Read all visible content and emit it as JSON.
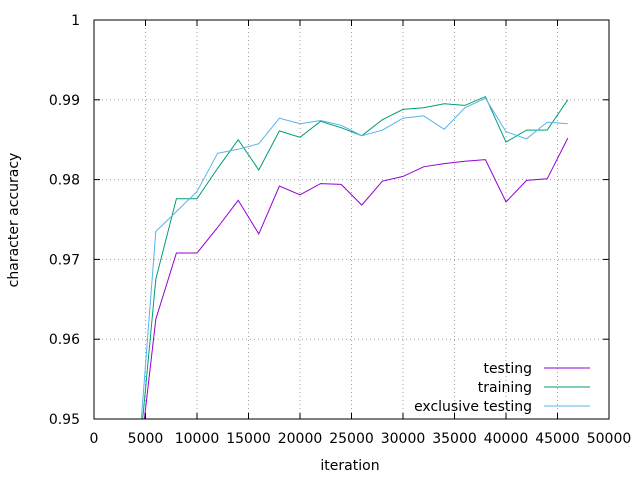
{
  "chart_data": {
    "type": "line",
    "xlabel": "iteration",
    "ylabel": "character accuracy",
    "xlim": [
      0,
      50000
    ],
    "ylim": [
      0.95,
      1
    ],
    "xticks": [
      0,
      5000,
      10000,
      15000,
      20000,
      25000,
      30000,
      35000,
      40000,
      45000,
      50000
    ],
    "yticks": [
      0.95,
      0.96,
      0.97,
      0.98,
      0.99,
      1
    ],
    "xtick_labels": [
      "0",
      "5000",
      "10000",
      "15000",
      "20000",
      "25000",
      "30000",
      "35000",
      "40000",
      "45000",
      "50000"
    ],
    "ytick_labels": [
      "0.95",
      "0.96",
      "0.97",
      "0.98",
      "0.99",
      "1"
    ],
    "grid": true,
    "legend_position": "bottom-right",
    "x": [
      4000,
      6000,
      8000,
      10000,
      12000,
      14000,
      16000,
      18000,
      20000,
      22000,
      24000,
      26000,
      28000,
      30000,
      32000,
      34000,
      36000,
      38000,
      40000,
      42000,
      44000,
      46000
    ],
    "series": [
      {
        "name": "testing",
        "color": "#9400d3",
        "values": [
          0.94,
          0.9625,
          0.9708,
          0.9708,
          0.974,
          0.9774,
          0.9732,
          0.9792,
          0.9781,
          0.9795,
          0.9794,
          0.9768,
          0.9798,
          0.9804,
          0.9816,
          0.982,
          0.9823,
          0.9825,
          0.9772,
          0.9799,
          0.9801,
          0.9852
        ]
      },
      {
        "name": "training",
        "color": "#009e73",
        "values": [
          0.94,
          0.9675,
          0.9776,
          0.9776,
          0.9814,
          0.985,
          0.9812,
          0.9861,
          0.9853,
          0.9873,
          0.9865,
          0.9855,
          0.9875,
          0.9888,
          0.989,
          0.9895,
          0.9893,
          0.9904,
          0.9847,
          0.9862,
          0.9862,
          0.99
        ]
      },
      {
        "name": "exclusive testing",
        "color": "#56b4e9",
        "values": [
          0.94,
          0.9735,
          0.976,
          0.9785,
          0.9833,
          0.9838,
          0.9845,
          0.9877,
          0.987,
          0.9874,
          0.9868,
          0.9855,
          0.9862,
          0.9877,
          0.988,
          0.9863,
          0.989,
          0.9902,
          0.986,
          0.9851,
          0.9872,
          0.987
        ]
      }
    ]
  }
}
